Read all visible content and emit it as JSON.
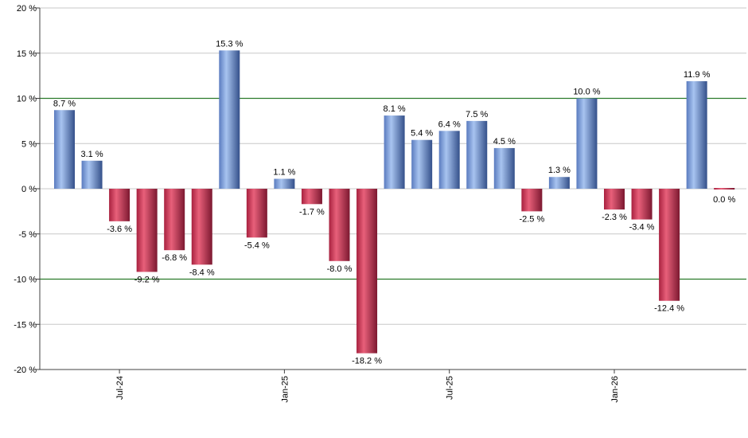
{
  "chart_data": {
    "type": "bar",
    "title": "",
    "xlabel": "",
    "ylabel": "",
    "ylim": [
      -20,
      20
    ],
    "y_ticks": [
      20,
      15,
      10,
      5,
      0,
      -5,
      -10,
      -15,
      -20
    ],
    "y_tick_labels": [
      "20 %",
      "15 %",
      "10 %",
      "5 %",
      "0 %",
      "-5 %",
      "-10 %",
      "-15 %",
      "-20 %"
    ],
    "reference_lines": [
      10,
      -10
    ],
    "grid": true,
    "categories": [
      "2024-05",
      "2024-06",
      "2024-07",
      "2024-08",
      "2024-09",
      "2024-10",
      "2024-11",
      "2024-12",
      "2025-01",
      "2025-02",
      "2025-03",
      "2025-04",
      "2025-05",
      "2025-06",
      "2025-07",
      "2025-08",
      "2025-09",
      "2025-10",
      "2025-11",
      "2025-12",
      "2026-01",
      "2026-02",
      "2026-03",
      "2026-04",
      "2026-05"
    ],
    "values": [
      8.7,
      3.1,
      -3.6,
      -9.2,
      -6.8,
      -8.4,
      15.3,
      -5.4,
      1.1,
      -1.7,
      -8.0,
      -18.2,
      8.1,
      5.4,
      6.4,
      7.5,
      4.5,
      -2.5,
      1.3,
      10.0,
      -2.3,
      -3.4,
      -12.4,
      11.9,
      0.0
    ],
    "value_labels": [
      "8.7 %",
      "3.1 %",
      "-3.6 %",
      "-9.2 %",
      "-6.8 %",
      "-8.4 %",
      "15.3 %",
      "-5.4 %",
      "1.1 %",
      "-1.7 %",
      "-8.0 %",
      "-18.2 %",
      "8.1 %",
      "5.4 %",
      "6.4 %",
      "7.5 %",
      "4.5 %",
      "-2.5 %",
      "1.3 %",
      "10.0 %",
      "-2.3 %",
      "-3.4 %",
      "-12.4 %",
      "11.9 %",
      "0.0 %"
    ],
    "x_tick_labels": [
      {
        "index": 2,
        "label": "Jul-24"
      },
      {
        "index": 8,
        "label": "Jan-25"
      },
      {
        "index": 14,
        "label": "Jul-25"
      },
      {
        "index": 20,
        "label": "Jan-26"
      }
    ],
    "colors": {
      "positive_dark": "#4a6aa8",
      "positive_light": "#a8c4f0",
      "negative_dark": "#9c1f3c",
      "negative_light": "#e8607a",
      "grid": "#c8c8c8",
      "reference": "#2a7a2a",
      "axis": "#404040"
    }
  }
}
